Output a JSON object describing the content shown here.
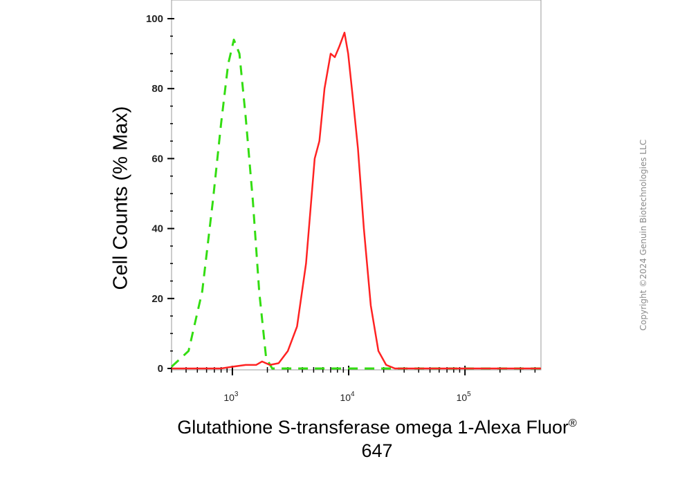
{
  "chart_data": {
    "type": "line",
    "title": "",
    "ylabel": "Cell Counts (% Max)",
    "xlabel": "Glutathione S-transferase omega 1-Alexa Fluor",
    "xlabel_suffix": "®",
    "xlabel_line2": "647",
    "xscale": "log",
    "xlim": [
      300,
      450000
    ],
    "ylim": [
      0,
      100
    ],
    "yticks": [
      0,
      20,
      40,
      60,
      80,
      100
    ],
    "ytick_labels": [
      "0",
      "20",
      "40",
      "60",
      "80",
      "100"
    ],
    "xticks": [
      1000,
      10000,
      100000
    ],
    "xtick_labels": [
      {
        "base": "10",
        "exp": "3"
      },
      {
        "base": "10",
        "exp": "4"
      },
      {
        "base": "10",
        "exp": "5"
      }
    ],
    "grid": false,
    "legend": false,
    "series": [
      {
        "style": "dashed",
        "color": "#33dd11",
        "points": [
          [
            300,
            0.5
          ],
          [
            420,
            5
          ],
          [
            550,
            22
          ],
          [
            680,
            48
          ],
          [
            800,
            70
          ],
          [
            920,
            87
          ],
          [
            1030,
            94
          ],
          [
            1150,
            90
          ],
          [
            1300,
            72
          ],
          [
            1500,
            48
          ],
          [
            1700,
            22
          ],
          [
            1950,
            3
          ],
          [
            2200,
            0
          ],
          [
            4000,
            0
          ],
          [
            10000,
            0
          ],
          [
            30000,
            0
          ],
          [
            100000,
            0
          ],
          [
            450000,
            0
          ]
        ]
      },
      {
        "style": "solid",
        "color": "#ff2222",
        "points": [
          [
            300,
            0
          ],
          [
            800,
            0
          ],
          [
            1000,
            0.5
          ],
          [
            1300,
            1
          ],
          [
            1600,
            1
          ],
          [
            1800,
            2
          ],
          [
            2100,
            1
          ],
          [
            2500,
            1.5
          ],
          [
            3000,
            5
          ],
          [
            3600,
            12
          ],
          [
            4300,
            30
          ],
          [
            5100,
            60
          ],
          [
            5600,
            65
          ],
          [
            6200,
            80
          ],
          [
            7000,
            90
          ],
          [
            7600,
            89
          ],
          [
            8300,
            92
          ],
          [
            9200,
            96
          ],
          [
            9900,
            90
          ],
          [
            10800,
            78
          ],
          [
            12000,
            63
          ],
          [
            13500,
            40
          ],
          [
            15500,
            18
          ],
          [
            18000,
            5
          ],
          [
            21000,
            1
          ],
          [
            25000,
            0
          ],
          [
            100000,
            0
          ],
          [
            450000,
            0
          ]
        ]
      }
    ]
  },
  "watermark": "Copyright ©2024 Genuin Biotechnologies LLC"
}
